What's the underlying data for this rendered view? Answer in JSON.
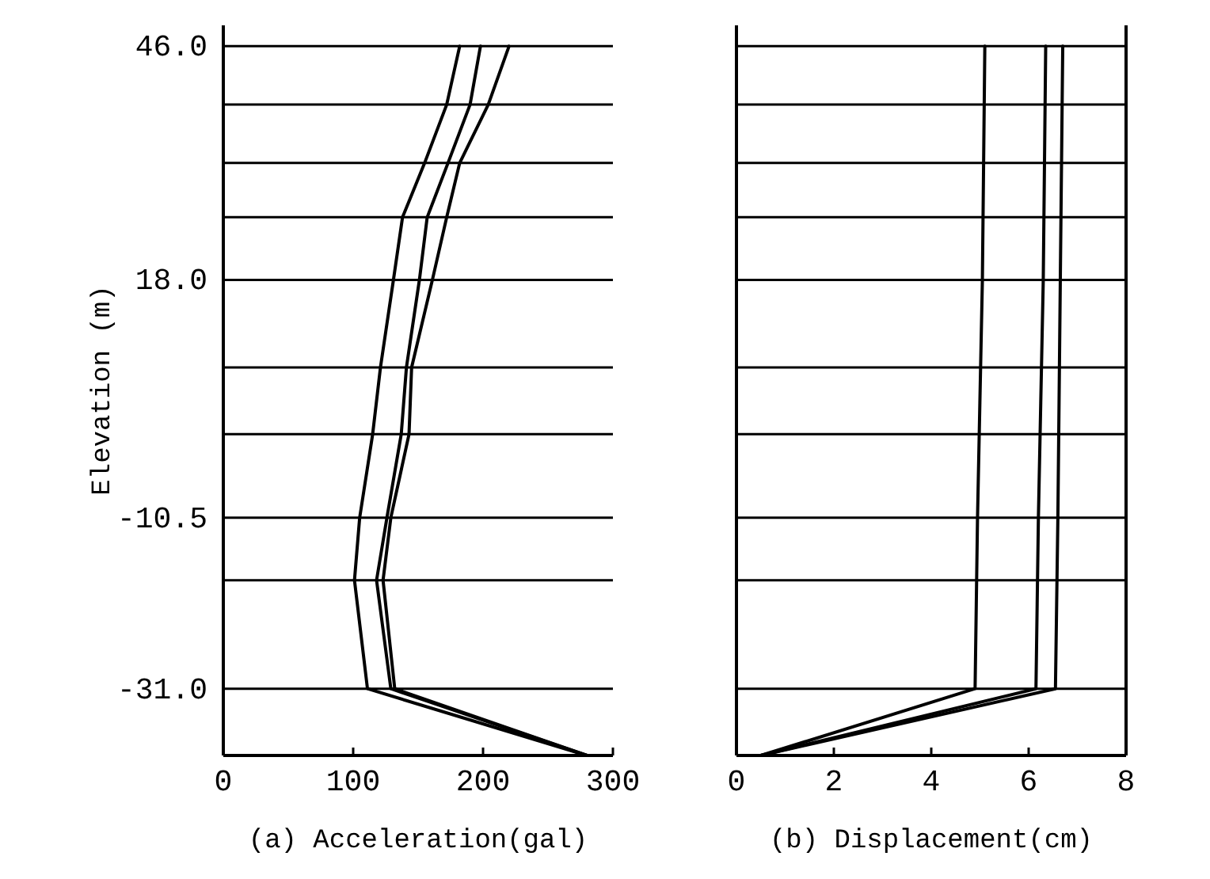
{
  "chart_data": [
    {
      "type": "line",
      "xlabel": "(a) Acceleration(gal)",
      "ylabel": "Elevation (m)",
      "xlim": [
        0,
        300
      ],
      "xticks": [
        0,
        100,
        200,
        300
      ],
      "ylim": [
        -39,
        48.5
      ],
      "yticks": [
        {
          "value": 46,
          "label": "46.0"
        },
        {
          "value": 39,
          "label": null
        },
        {
          "value": 32,
          "label": null
        },
        {
          "value": 25.5,
          "label": null
        },
        {
          "value": 18,
          "label": "18.0"
        },
        {
          "value": 7.5,
          "label": null
        },
        {
          "value": -0.5,
          "label": null
        },
        {
          "value": -10.5,
          "label": "-10.5"
        },
        {
          "value": -18,
          "label": null
        },
        {
          "value": -31,
          "label": "-31.0"
        }
      ],
      "grid": "y",
      "series": [
        {
          "color": "#000000",
          "x": [
            182,
            172,
            155,
            138,
            131,
            121,
            115,
            105,
            101,
            111,
            280
          ],
          "values": [
            46,
            39,
            32,
            25.5,
            18,
            7.5,
            -0.5,
            -10.5,
            -18,
            -31,
            -39
          ]
        },
        {
          "color": "#000000",
          "x": [
            198,
            190,
            173,
            157,
            151,
            141,
            137,
            126,
            118,
            129,
            280
          ],
          "values": [
            46,
            39,
            32,
            25.5,
            18,
            7.5,
            -0.5,
            -10.5,
            -18,
            -31,
            -39
          ]
        },
        {
          "color": "#000000",
          "x": [
            220,
            204,
            182,
            172,
            161,
            145,
            143,
            129,
            123,
            132,
            280
          ],
          "values": [
            46,
            39,
            32,
            25.5,
            18,
            7.5,
            -0.5,
            -10.5,
            -18,
            -31,
            -39
          ]
        }
      ]
    },
    {
      "type": "line",
      "xlabel": "(b) Displacement(cm)",
      "xlim": [
        0,
        8
      ],
      "xticks": [
        0,
        2,
        4,
        6,
        8
      ],
      "ylim": [
        -39,
        48.5
      ],
      "tick_labels": "x",
      "yticks": [
        {
          "value": 46,
          "label": null
        },
        {
          "value": 39,
          "label": null
        },
        {
          "value": 32,
          "label": null
        },
        {
          "value": 25.5,
          "label": null
        },
        {
          "value": 18,
          "label": null
        },
        {
          "value": 7.5,
          "label": null
        },
        {
          "value": -0.5,
          "label": null
        },
        {
          "value": -10.5,
          "label": null
        },
        {
          "value": -18,
          "label": null
        },
        {
          "value": -31,
          "label": null
        }
      ],
      "grid": "y",
      "series": [
        {
          "color": "#000000",
          "x": [
            5.1,
            5.05,
            4.95,
            4.9,
            0.5
          ],
          "values": [
            46,
            18,
            -10.5,
            -31,
            -39
          ]
        },
        {
          "color": "#000000",
          "x": [
            6.35,
            6.3,
            6.2,
            6.15,
            0.5
          ],
          "values": [
            46,
            18,
            -10.5,
            -31,
            -39
          ]
        },
        {
          "color": "#000000",
          "x": [
            6.7,
            6.65,
            6.6,
            6.55,
            0.5
          ],
          "values": [
            46,
            18,
            -10.5,
            -31,
            -39
          ]
        }
      ]
    }
  ]
}
